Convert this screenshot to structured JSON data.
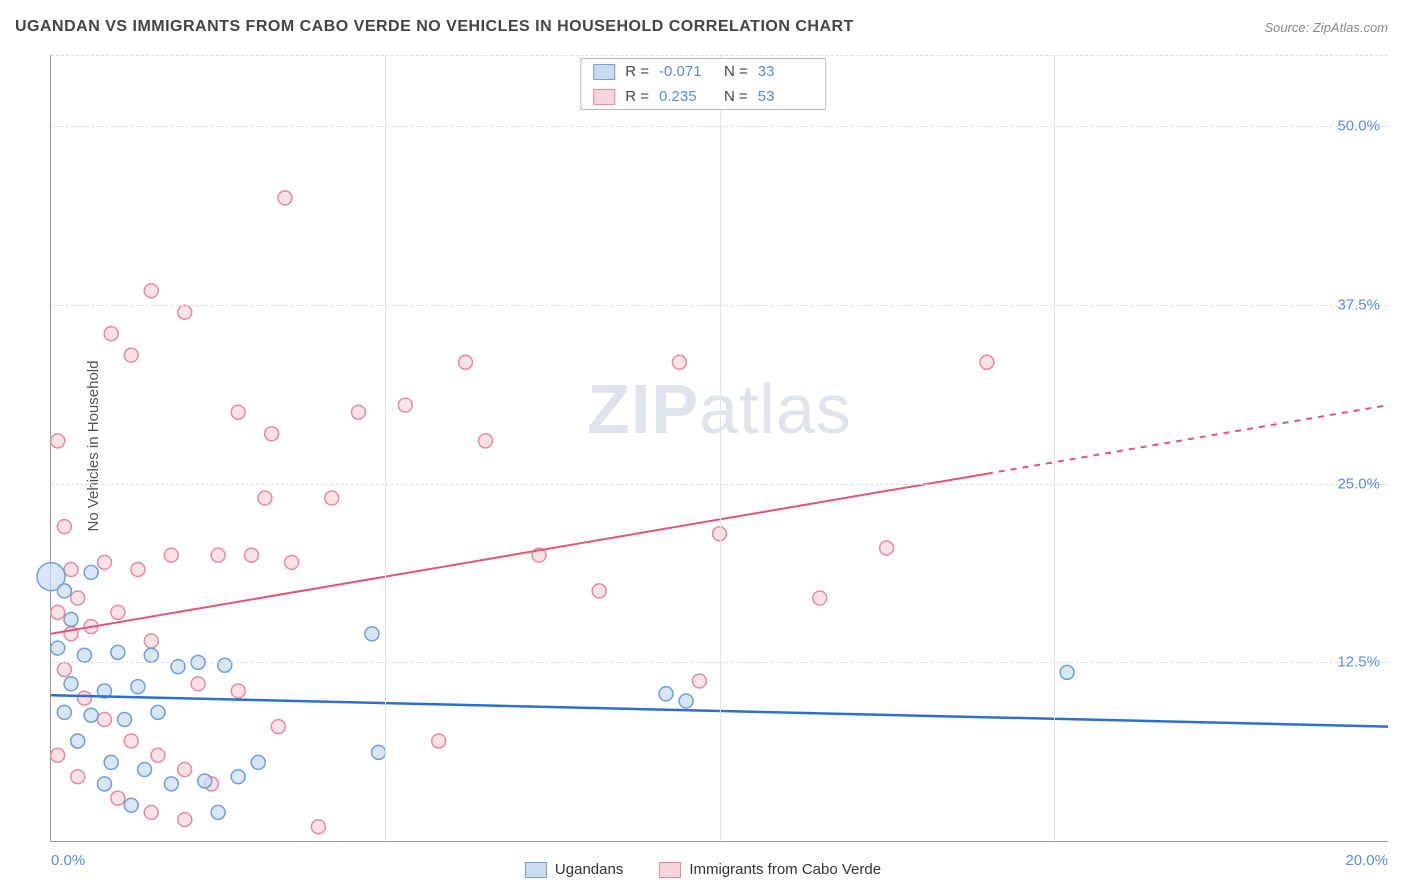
{
  "title": "UGANDAN VS IMMIGRANTS FROM CABO VERDE NO VEHICLES IN HOUSEHOLD CORRELATION CHART",
  "source": "Source: ZipAtlas.com",
  "ylabel": "No Vehicles in Household",
  "watermark_a": "ZIP",
  "watermark_b": "atlas",
  "chart": {
    "type": "scatter",
    "xlim": [
      0,
      20
    ],
    "ylim": [
      0,
      55
    ],
    "xticks": [
      0,
      20
    ],
    "xtick_labels": [
      "0.0%",
      "20.0%"
    ],
    "yticks": [
      12.5,
      25,
      37.5,
      50
    ],
    "ytick_labels": [
      "12.5%",
      "25.0%",
      "37.5%",
      "50.0%"
    ],
    "xtick_marks": [
      5,
      10,
      15
    ],
    "background_color": "#ffffff",
    "grid_color": "#dddddd",
    "axis_color": "#999999",
    "label_color": "#5b8dd6",
    "series": [
      {
        "name": "Ugandans",
        "marker_fill": "#c9dcf2",
        "marker_stroke": "#6f9fd8",
        "marker_fill_opacity": 0.7,
        "line_color": "#2d6fd0",
        "line_width": 2.5,
        "r_label": "R =",
        "r_value": "-0.071",
        "n_label": "N =",
        "n_value": "33",
        "trend": {
          "y_at_xmin": 10.2,
          "y_at_xmax": 8.0
        },
        "points": [
          {
            "x": 0.0,
            "y": 18.5,
            "r": 14
          },
          {
            "x": 0.2,
            "y": 17.5,
            "r": 7
          },
          {
            "x": 0.6,
            "y": 18.8,
            "r": 7
          },
          {
            "x": 0.3,
            "y": 15.5,
            "r": 7
          },
          {
            "x": 0.1,
            "y": 13.5,
            "r": 7
          },
          {
            "x": 0.5,
            "y": 13.0,
            "r": 7
          },
          {
            "x": 1.0,
            "y": 13.2,
            "r": 7
          },
          {
            "x": 1.5,
            "y": 13.0,
            "r": 7
          },
          {
            "x": 0.3,
            "y": 11.0,
            "r": 7
          },
          {
            "x": 0.8,
            "y": 10.5,
            "r": 7
          },
          {
            "x": 1.3,
            "y": 10.8,
            "r": 7
          },
          {
            "x": 1.9,
            "y": 12.2,
            "r": 7
          },
          {
            "x": 0.2,
            "y": 9.0,
            "r": 7
          },
          {
            "x": 0.6,
            "y": 8.8,
            "r": 7
          },
          {
            "x": 1.1,
            "y": 8.5,
            "r": 7
          },
          {
            "x": 1.6,
            "y": 9.0,
            "r": 7
          },
          {
            "x": 2.2,
            "y": 12.5,
            "r": 7
          },
          {
            "x": 2.6,
            "y": 12.3,
            "r": 7
          },
          {
            "x": 0.4,
            "y": 7.0,
            "r": 7
          },
          {
            "x": 0.9,
            "y": 5.5,
            "r": 7
          },
          {
            "x": 1.4,
            "y": 5.0,
            "r": 7
          },
          {
            "x": 1.8,
            "y": 4.0,
            "r": 7
          },
          {
            "x": 2.3,
            "y": 4.2,
            "r": 7
          },
          {
            "x": 2.8,
            "y": 4.5,
            "r": 7
          },
          {
            "x": 3.1,
            "y": 5.5,
            "r": 7
          },
          {
            "x": 1.2,
            "y": 2.5,
            "r": 7
          },
          {
            "x": 4.8,
            "y": 14.5,
            "r": 7
          },
          {
            "x": 4.9,
            "y": 6.2,
            "r": 7
          },
          {
            "x": 9.5,
            "y": 9.8,
            "r": 7
          },
          {
            "x": 9.2,
            "y": 10.3,
            "r": 7
          },
          {
            "x": 15.2,
            "y": 11.8,
            "r": 7
          },
          {
            "x": 2.5,
            "y": 2.0,
            "r": 7
          },
          {
            "x": 0.8,
            "y": 4.0,
            "r": 7
          }
        ]
      },
      {
        "name": "Immigrants from Cabo Verde",
        "marker_fill": "#f8d5dd",
        "marker_stroke": "#e68ba2",
        "marker_fill_opacity": 0.7,
        "line_color": "#e25578",
        "line_width": 2,
        "r_label": "R =",
        "r_value": "0.235",
        "n_label": "N =",
        "n_value": "53",
        "trend": {
          "y_at_xmin": 14.5,
          "y_at_xmax": 30.5
        },
        "trend_dash_from_x": 14,
        "points": [
          {
            "x": 0.1,
            "y": 28.0,
            "r": 7
          },
          {
            "x": 0.9,
            "y": 35.5,
            "r": 7
          },
          {
            "x": 1.5,
            "y": 38.5,
            "r": 7
          },
          {
            "x": 1.2,
            "y": 34.0,
            "r": 7
          },
          {
            "x": 3.5,
            "y": 45.0,
            "r": 7
          },
          {
            "x": 2.0,
            "y": 37.0,
            "r": 7
          },
          {
            "x": 2.8,
            "y": 30.0,
            "r": 7
          },
          {
            "x": 3.2,
            "y": 24.0,
            "r": 7
          },
          {
            "x": 0.2,
            "y": 22.0,
            "r": 7
          },
          {
            "x": 0.4,
            "y": 17.0,
            "r": 7
          },
          {
            "x": 0.8,
            "y": 19.5,
            "r": 7
          },
          {
            "x": 1.3,
            "y": 19.0,
            "r": 7
          },
          {
            "x": 1.8,
            "y": 20.0,
            "r": 7
          },
          {
            "x": 2.5,
            "y": 20.0,
            "r": 7
          },
          {
            "x": 3.0,
            "y": 20.0,
            "r": 7
          },
          {
            "x": 3.6,
            "y": 19.5,
            "r": 7
          },
          {
            "x": 3.3,
            "y": 28.5,
            "r": 7
          },
          {
            "x": 4.2,
            "y": 24.0,
            "r": 7
          },
          {
            "x": 4.6,
            "y": 30.0,
            "r": 7
          },
          {
            "x": 5.3,
            "y": 30.5,
            "r": 7
          },
          {
            "x": 6.2,
            "y": 33.5,
            "r": 7
          },
          {
            "x": 6.5,
            "y": 28.0,
            "r": 7
          },
          {
            "x": 9.4,
            "y": 33.5,
            "r": 7
          },
          {
            "x": 7.3,
            "y": 20.0,
            "r": 7
          },
          {
            "x": 8.2,
            "y": 17.5,
            "r": 7
          },
          {
            "x": 9.7,
            "y": 11.2,
            "r": 7
          },
          {
            "x": 10.0,
            "y": 21.5,
            "r": 7
          },
          {
            "x": 11.5,
            "y": 17.0,
            "r": 7
          },
          {
            "x": 12.5,
            "y": 20.5,
            "r": 7
          },
          {
            "x": 14.0,
            "y": 33.5,
            "r": 7
          },
          {
            "x": 0.3,
            "y": 14.5,
            "r": 7
          },
          {
            "x": 0.6,
            "y": 15.0,
            "r": 7
          },
          {
            "x": 1.0,
            "y": 16.0,
            "r": 7
          },
          {
            "x": 1.5,
            "y": 14.0,
            "r": 7
          },
          {
            "x": 0.2,
            "y": 12.0,
            "r": 7
          },
          {
            "x": 0.5,
            "y": 10.0,
            "r": 7
          },
          {
            "x": 0.8,
            "y": 8.5,
            "r": 7
          },
          {
            "x": 1.2,
            "y": 7.0,
            "r": 7
          },
          {
            "x": 1.6,
            "y": 6.0,
            "r": 7
          },
          {
            "x": 2.0,
            "y": 5.0,
            "r": 7
          },
          {
            "x": 2.4,
            "y": 4.0,
            "r": 7
          },
          {
            "x": 1.0,
            "y": 3.0,
            "r": 7
          },
          {
            "x": 1.5,
            "y": 2.0,
            "r": 7
          },
          {
            "x": 2.0,
            "y": 1.5,
            "r": 7
          },
          {
            "x": 2.2,
            "y": 11.0,
            "r": 7
          },
          {
            "x": 2.8,
            "y": 10.5,
            "r": 7
          },
          {
            "x": 3.4,
            "y": 8.0,
            "r": 7
          },
          {
            "x": 4.0,
            "y": 1.0,
            "r": 7
          },
          {
            "x": 5.8,
            "y": 7.0,
            "r": 7
          },
          {
            "x": 0.1,
            "y": 6.0,
            "r": 7
          },
          {
            "x": 0.4,
            "y": 4.5,
            "r": 7
          },
          {
            "x": 0.1,
            "y": 16.0,
            "r": 7
          },
          {
            "x": 0.3,
            "y": 19.0,
            "r": 7
          }
        ]
      }
    ]
  },
  "legend_bottom": [
    {
      "label": "Ugandans",
      "fill": "#c9dcf2",
      "stroke": "#6f9fd8"
    },
    {
      "label": "Immigrants from Cabo Verde",
      "fill": "#f8d5dd",
      "stroke": "#e68ba2"
    }
  ]
}
